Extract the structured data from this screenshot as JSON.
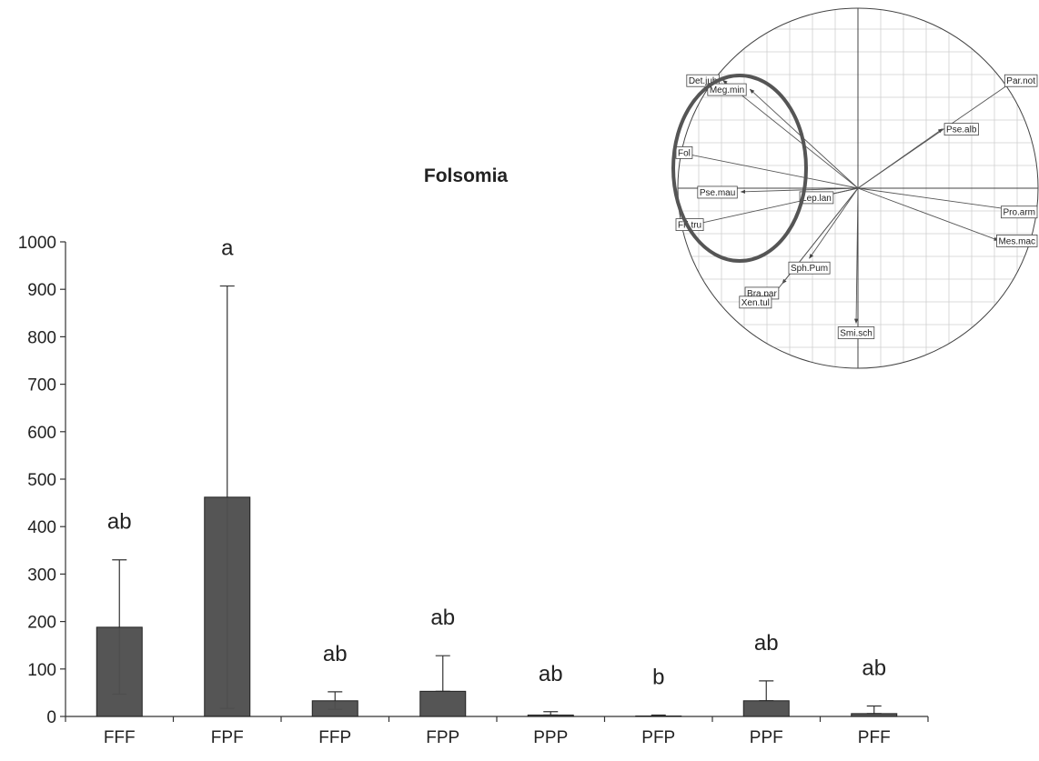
{
  "chart_data": [
    {
      "type": "bar",
      "title": "Folsomia",
      "xlabel": "",
      "ylabel": "",
      "ylim": [
        0,
        1000
      ],
      "yticks": [
        0,
        100,
        200,
        300,
        400,
        500,
        600,
        700,
        800,
        900,
        1000
      ],
      "categories": [
        "FFF",
        "FPF",
        "FFP",
        "FPP",
        "PPP",
        "PFP",
        "PPF",
        "PFF"
      ],
      "values": [
        188,
        462,
        33,
        53,
        3,
        1,
        33,
        6
      ],
      "error_upper": [
        330,
        907,
        52,
        128,
        10,
        3,
        75,
        22
      ],
      "error_lower": [
        47,
        17,
        15,
        53,
        3,
        1,
        33,
        6
      ],
      "significance_letters": [
        "ab",
        "a",
        "ab",
        "ab",
        "ab",
        "b",
        "ab",
        "ab"
      ],
      "bar_color": "#505050",
      "grid": false
    },
    {
      "type": "scatter",
      "subtype": "pca-correlation-circle",
      "xlim": [
        -1,
        1
      ],
      "ylim": [
        -1,
        1
      ],
      "grid": true,
      "highlight_ellipse_color": "#555555",
      "vectors": [
        {
          "label": "Det.jub",
          "x": -0.75,
          "y": 0.6
        },
        {
          "label": "Meg.min",
          "x": -0.6,
          "y": 0.55
        },
        {
          "label": "Par.not",
          "x": 0.87,
          "y": 0.6
        },
        {
          "label": "Pse.alb",
          "x": 0.47,
          "y": 0.33
        },
        {
          "label": "Fol",
          "x": -1.0,
          "y": 0.2
        },
        {
          "label": "Pse.mau",
          "x": -0.65,
          "y": -0.02
        },
        {
          "label": "Lep.lan",
          "x": -0.23,
          "y": -0.05
        },
        {
          "label": "Pro.arm",
          "x": 0.93,
          "y": -0.13
        },
        {
          "label": "Fri.tru",
          "x": -0.9,
          "y": -0.2
        },
        {
          "label": "Mes.mac",
          "x": 0.78,
          "y": -0.29
        },
        {
          "label": "Sph.Pum",
          "x": -0.27,
          "y": -0.39
        },
        {
          "label": "Bra.par",
          "x": -0.42,
          "y": -0.53
        },
        {
          "label": "Xen.tul",
          "x": -0.46,
          "y": -0.58
        },
        {
          "label": "Smi.sch",
          "x": -0.01,
          "y": -0.75
        }
      ]
    }
  ]
}
